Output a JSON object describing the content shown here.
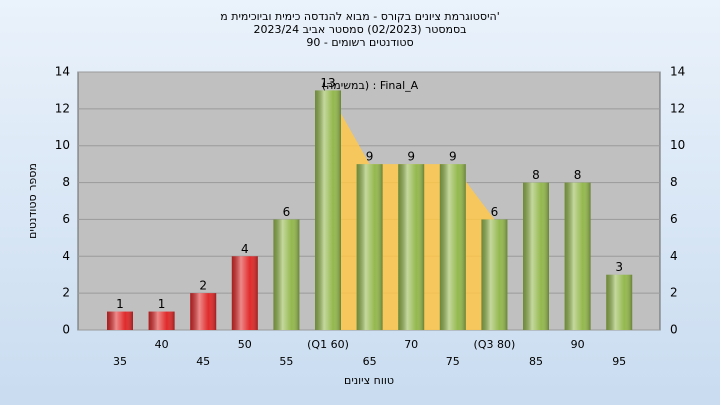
{
  "chart_data": {
    "type": "bar",
    "title_lines": [
      "היסטוגרמת ציונים בקורס - מבוא להנדסה כימית וביוכימית מ'",
      "בסמסטר (02/2023) סמסטר אביב 2023/24",
      "90 - סטודנטים רשומים"
    ],
    "legend": "(במשימה) : Final_A",
    "xlabel": "טווח ציונים",
    "ylabel": "מספר סטודנטים",
    "categories": [
      "35",
      "40",
      "45",
      "50",
      "55",
      "(Q1 60)",
      "65",
      "70",
      "75",
      "(Q3 80)",
      "85",
      "90",
      "95"
    ],
    "values": [
      1,
      1,
      2,
      4,
      6,
      13,
      9,
      9,
      9,
      6,
      8,
      8,
      3
    ],
    "colors": [
      "#e02a2a",
      "#e02a2a",
      "#e02a2a",
      "#e02a2a",
      "#94b84e",
      "#94b84e",
      "#94b84e",
      "#94b84e",
      "#94b84e",
      "#94b84e",
      "#94b84e",
      "#94b84e",
      "#94b84e"
    ],
    "area_color": "#ffc84a",
    "ylim": [
      0,
      14
    ],
    "yticks": [
      0,
      2,
      4,
      6,
      8,
      10,
      12,
      14
    ],
    "grid": true
  }
}
